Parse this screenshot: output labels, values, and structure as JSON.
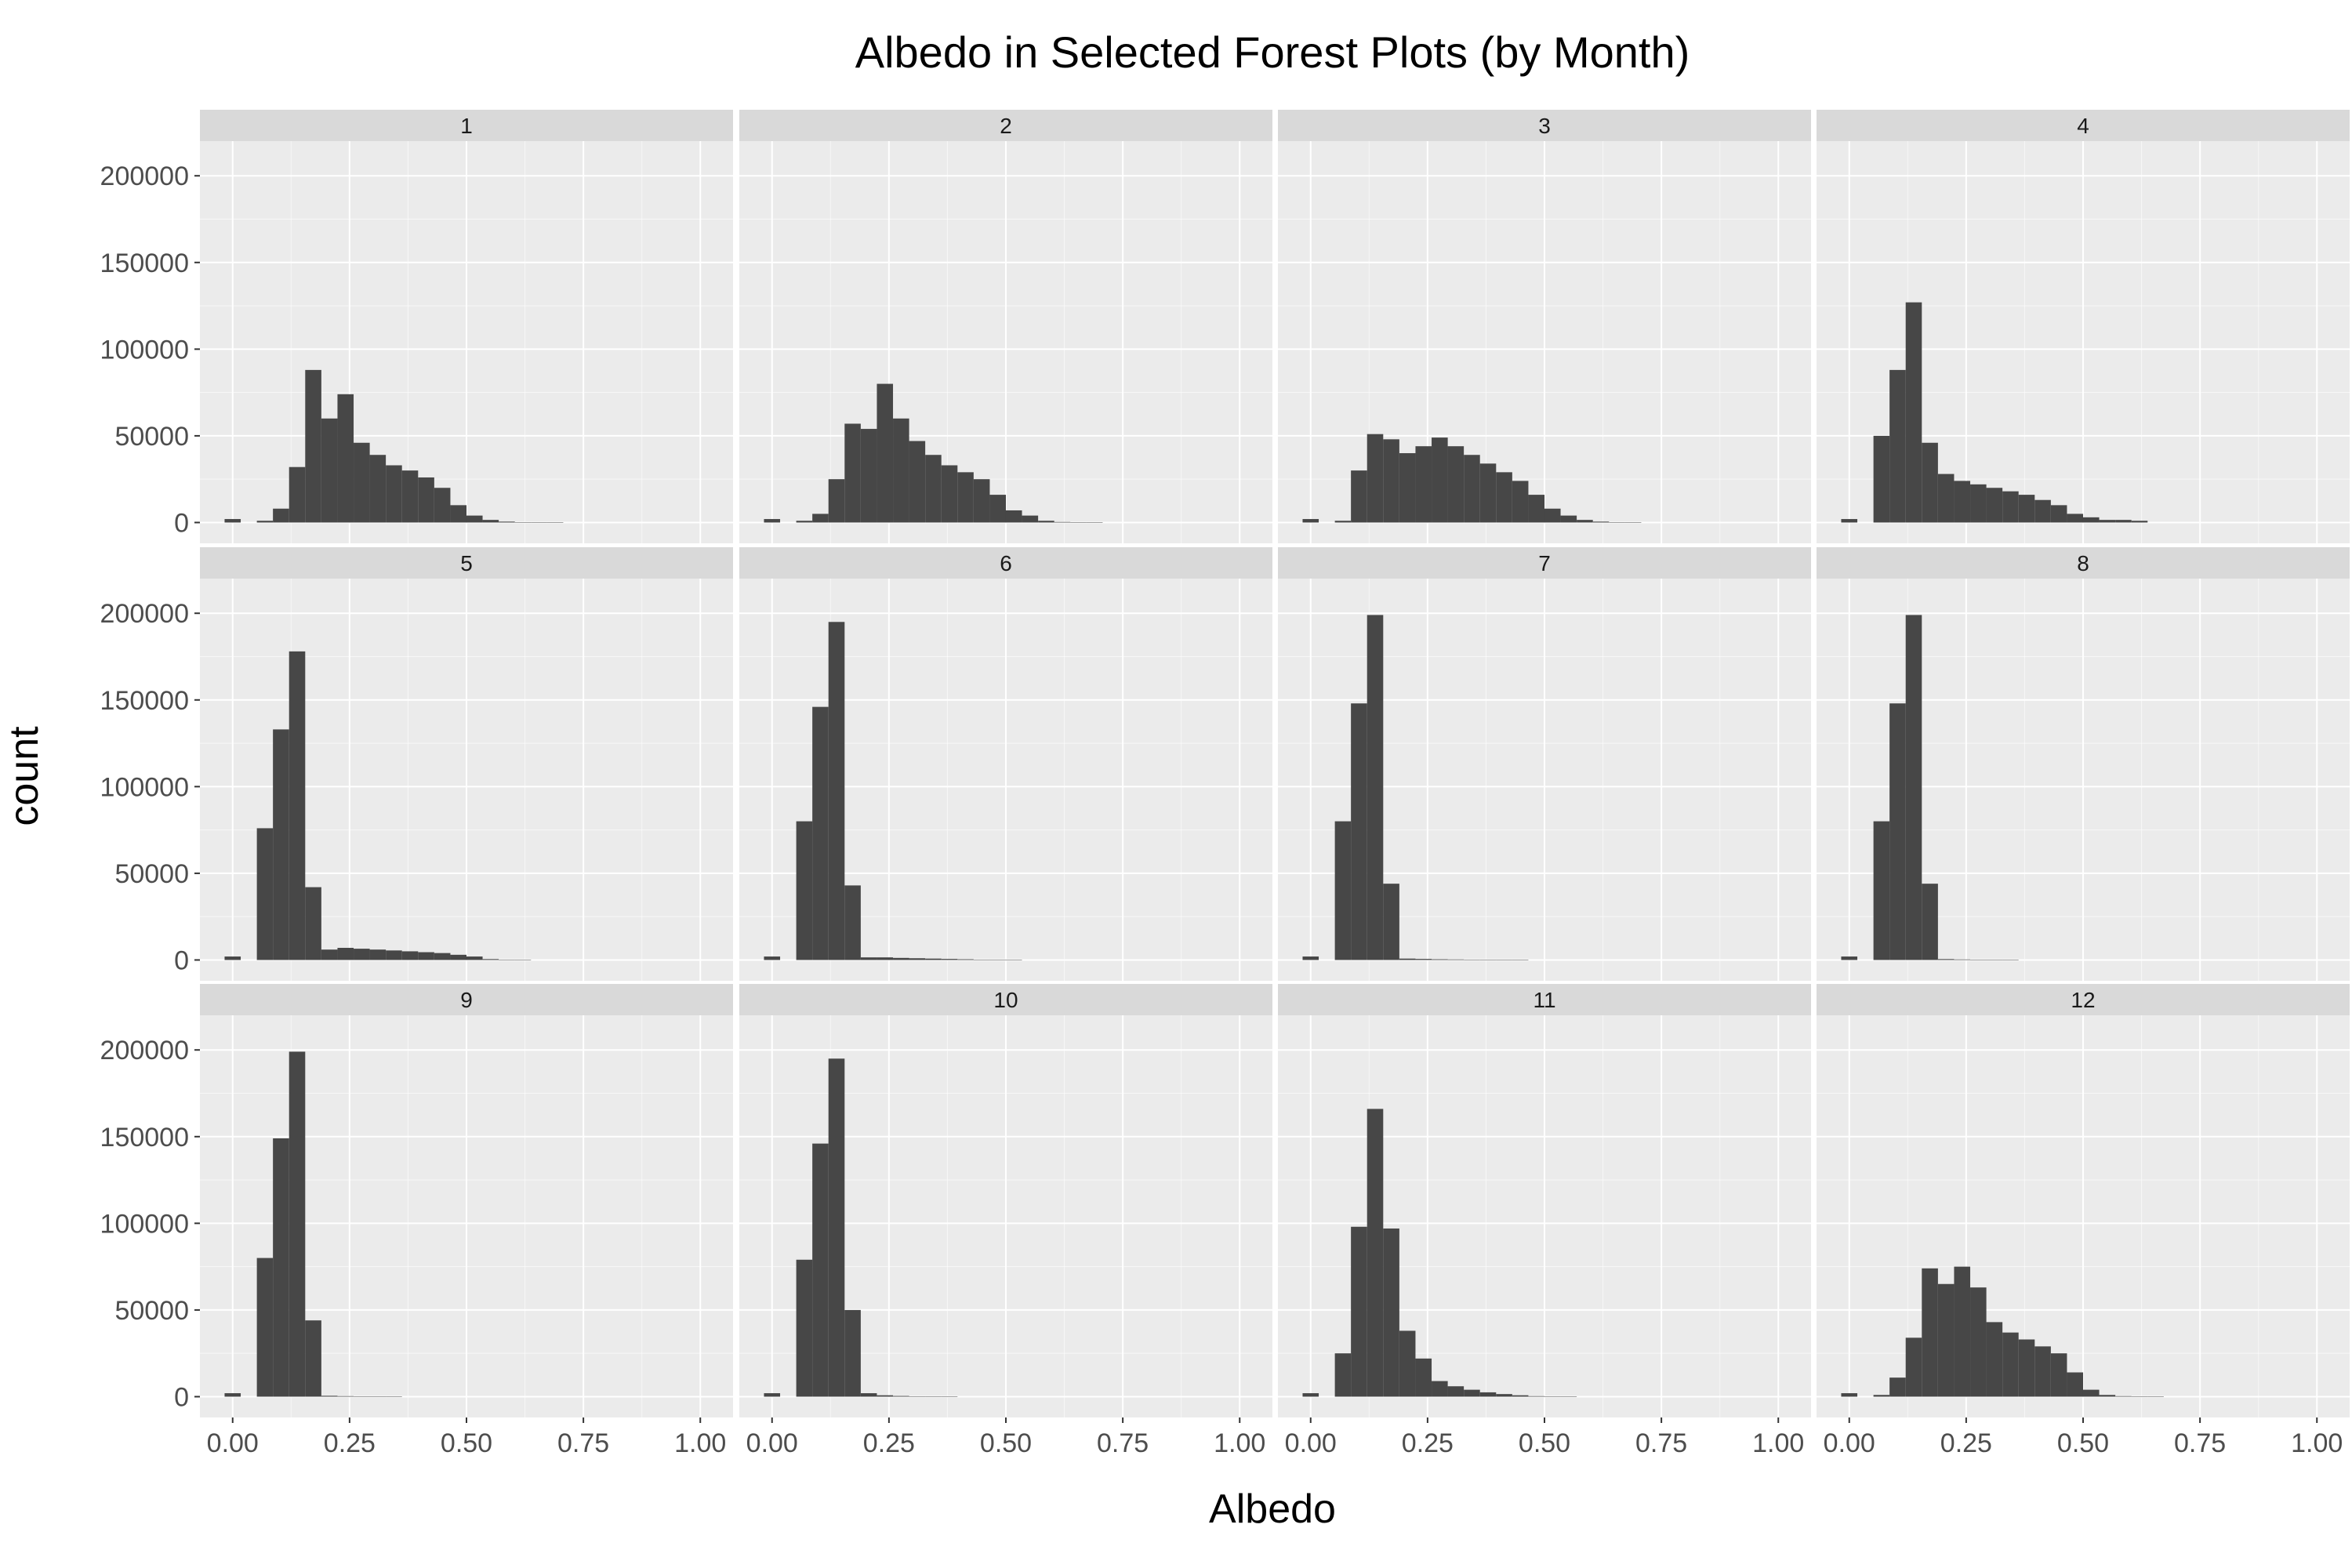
{
  "chart_data": {
    "type": "bar",
    "title": "Albedo in Selected Forest Plots (by Month)",
    "xlabel": "Albedo",
    "ylabel": "count",
    "xlim": [
      -0.07,
      1.07
    ],
    "ylim": [
      -12000,
      220000
    ],
    "x_ticks": [
      0,
      0.25,
      0.5,
      0.75,
      1
    ],
    "x_tick_labels": [
      "0.00",
      "0.25",
      "0.50",
      "0.75",
      "1.00"
    ],
    "y_ticks": [
      0,
      50000,
      100000,
      150000,
      200000
    ],
    "y_tick_labels": [
      "0",
      "50000",
      "100000",
      "150000",
      "200000"
    ],
    "bin_width": 0.0345,
    "bin_centers": [
      0,
      0.0345,
      0.069,
      0.1034,
      0.1379,
      0.1724,
      0.2069,
      0.2414,
      0.2759,
      0.3103,
      0.3448,
      0.3793,
      0.4138,
      0.4483,
      0.4828,
      0.5172,
      0.5517,
      0.5862,
      0.6207,
      0.6552,
      0.6897,
      0.7241,
      0.7586,
      0.7931,
      0.8276,
      0.8621,
      0.8966,
      0.931,
      0.9655,
      1.0
    ],
    "grid": true,
    "facet_layout": {
      "rows": 3,
      "cols": 4
    },
    "colors": {
      "bar": "#474747",
      "panel": "#ebebeb",
      "strip": "#d9d9d9",
      "grid": "#ffffff"
    },
    "facets": [
      {
        "label": "1",
        "values": [
          2000,
          0,
          1000,
          8000,
          32000,
          88000,
          60000,
          74000,
          46000,
          39000,
          33000,
          30000,
          26000,
          20000,
          10000,
          4000,
          1500,
          500,
          200,
          100,
          50,
          0,
          0,
          0,
          0,
          0,
          0,
          0,
          0,
          0
        ]
      },
      {
        "label": "2",
        "values": [
          2000,
          0,
          1000,
          5000,
          25000,
          57000,
          54000,
          80000,
          60000,
          47000,
          39000,
          33000,
          29000,
          25000,
          16000,
          7000,
          4000,
          1000,
          300,
          100,
          50,
          0,
          0,
          0,
          0,
          0,
          0,
          0,
          0,
          0
        ]
      },
      {
        "label": "3",
        "values": [
          2000,
          0,
          1000,
          30000,
          51000,
          48000,
          40000,
          44000,
          49000,
          44000,
          39000,
          34000,
          29000,
          24000,
          16000,
          8000,
          4000,
          1500,
          500,
          200,
          100,
          0,
          0,
          0,
          0,
          0,
          0,
          0,
          0,
          0
        ]
      },
      {
        "label": "4",
        "values": [
          2000,
          0,
          50000,
          88000,
          127000,
          46000,
          28000,
          24000,
          22000,
          20000,
          18000,
          16000,
          13000,
          10000,
          5000,
          3000,
          1500,
          1500,
          1000,
          0,
          0,
          0,
          0,
          0,
          0,
          0,
          0,
          0,
          0,
          0
        ]
      },
      {
        "label": "5",
        "values": [
          2000,
          0,
          76000,
          133000,
          178000,
          42000,
          6000,
          7000,
          6500,
          6000,
          5500,
          5000,
          4500,
          4000,
          3000,
          2000,
          500,
          200,
          100,
          0,
          0,
          0,
          0,
          0,
          0,
          0,
          0,
          0,
          0,
          0
        ]
      },
      {
        "label": "6",
        "values": [
          2000,
          0,
          80000,
          146000,
          195000,
          43000,
          1500,
          1500,
          1200,
          1000,
          800,
          600,
          400,
          200,
          100,
          50,
          0,
          0,
          0,
          0,
          0,
          0,
          0,
          0,
          0,
          0,
          0,
          0,
          0,
          0
        ]
      },
      {
        "label": "7",
        "values": [
          2000,
          0,
          80000,
          148000,
          199000,
          44000,
          800,
          600,
          400,
          300,
          200,
          150,
          100,
          50,
          0,
          0,
          0,
          0,
          0,
          0,
          0,
          0,
          0,
          0,
          0,
          0,
          0,
          0,
          0,
          0
        ]
      },
      {
        "label": "8",
        "values": [
          2000,
          0,
          80000,
          148000,
          199000,
          44000,
          500,
          300,
          200,
          100,
          50,
          0,
          0,
          0,
          0,
          0,
          0,
          0,
          0,
          0,
          0,
          0,
          0,
          0,
          0,
          0,
          0,
          0,
          0,
          0
        ]
      },
      {
        "label": "9",
        "values": [
          2000,
          0,
          80000,
          149000,
          199000,
          44000,
          500,
          300,
          200,
          100,
          50,
          0,
          0,
          0,
          0,
          0,
          0,
          0,
          0,
          0,
          0,
          0,
          0,
          0,
          0,
          0,
          0,
          0,
          0,
          0
        ]
      },
      {
        "label": "10",
        "values": [
          2000,
          0,
          79000,
          146000,
          195000,
          50000,
          2000,
          800,
          400,
          200,
          100,
          50,
          0,
          0,
          0,
          0,
          0,
          0,
          0,
          0,
          0,
          0,
          0,
          0,
          0,
          0,
          0,
          0,
          0,
          0
        ]
      },
      {
        "label": "11",
        "values": [
          2000,
          0,
          25000,
          98000,
          166000,
          97000,
          38000,
          22000,
          9000,
          6000,
          4000,
          2500,
          1500,
          800,
          300,
          100,
          50,
          0,
          0,
          0,
          0,
          0,
          0,
          0,
          0,
          0,
          0,
          0,
          0,
          0
        ]
      },
      {
        "label": "12",
        "values": [
          2000,
          0,
          1000,
          11000,
          34000,
          74000,
          65000,
          75000,
          63000,
          43000,
          37000,
          33000,
          29000,
          25000,
          14000,
          4000,
          1000,
          300,
          100,
          50,
          0,
          0,
          0,
          0,
          0,
          0,
          0,
          0,
          0,
          0
        ]
      }
    ]
  }
}
